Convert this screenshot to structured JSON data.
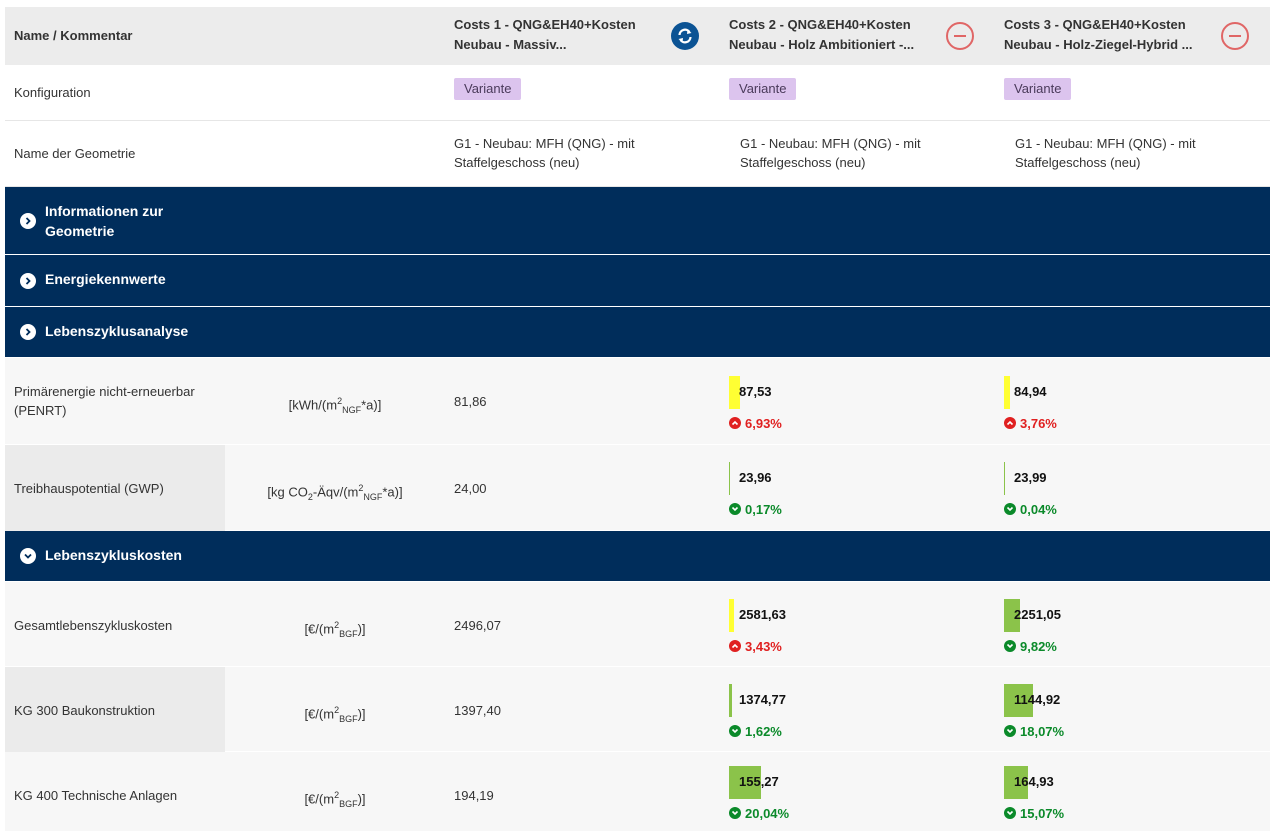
{
  "header": {
    "name_label": "Name / Kommentar",
    "variants": [
      {
        "line1": "Costs 1 - QNG&EH40+Kosten",
        "line2": "Neubau - Massiv..."
      },
      {
        "line1": "Costs 2 - QNG&EH40+Kosten",
        "line2": "Neubau - Holz Ambitioniert -..."
      },
      {
        "line1": "Costs 3 - QNG&EH40+Kosten",
        "line2": "Neubau - Holz-Ziegel-Hybrid ..."
      }
    ]
  },
  "konfiguration": {
    "label": "Konfiguration",
    "badge": "Variante"
  },
  "geometrie": {
    "label": "Name der Geometrie",
    "line1": "G1 - Neubau: MFH (QNG) - mit",
    "line2": "Staffelgeschoss (neu)"
  },
  "sections": {
    "info": {
      "line1": "Informationen zur",
      "line2": "Geometrie"
    },
    "energie": "Energiekennwerte",
    "lca": "Lebenszyklusanalyse",
    "lcc": "Lebenszykluskosten"
  },
  "rows": [
    {
      "label1": "Primärenergie nicht-erneuerbar",
      "label2": "(PENRT)",
      "unit_pre": "[kWh/(m",
      "unit_sup": "2",
      "unit_sub": "NGF",
      "unit_post": "*a)]",
      "base": "81,86",
      "v2": {
        "value": "87,53",
        "delta": "6,93%",
        "dir": "up",
        "bar_color": "#ffff33",
        "bar_fraction": 0.07
      },
      "v3": {
        "value": "84,94",
        "delta": "3,76%",
        "dir": "up",
        "bar_color": "#ffff33",
        "bar_fraction": 0.04
      }
    },
    {
      "label1": "Treibhauspotential (GWP)",
      "label2": "",
      "unit_pre": "[kg CO",
      "unit_sub0": "2",
      "unit_mid": "-Äqv/(m",
      "unit_sup": "2",
      "unit_sub": "NGF",
      "unit_post": "*a)]",
      "base": "24,00",
      "v2": {
        "value": "23,96",
        "delta": "0,17%",
        "dir": "down",
        "bar_color": "#8bc34a",
        "bar_fraction": 0.002
      },
      "v3": {
        "value": "23,99",
        "delta": "0,04%",
        "dir": "down",
        "bar_color": "#8bc34a",
        "bar_fraction": 0.0004
      }
    },
    {
      "label1": "Gesamtlebenszykluskosten",
      "label2": "",
      "unit_pre": "[€/(m",
      "unit_sup": "2",
      "unit_sub": "BGF",
      "unit_post": ")]",
      "base": "2496,07",
      "v2": {
        "value": "2581,63",
        "delta": "3,43%",
        "dir": "up",
        "bar_color": "#ffff33",
        "bar_fraction": 0.034
      },
      "v3": {
        "value": "2251,05",
        "delta": "9,82%",
        "dir": "down",
        "bar_color": "#8bc34a",
        "bar_fraction": 0.098
      }
    },
    {
      "label1": "KG 300 Baukonstruktion",
      "label2": "",
      "unit_pre": "[€/(m",
      "unit_sup": "2",
      "unit_sub": "BGF",
      "unit_post": ")]",
      "base": "1397,40",
      "v2": {
        "value": "1374,77",
        "delta": "1,62%",
        "dir": "down",
        "bar_color": "#8bc34a",
        "bar_fraction": 0.016
      },
      "v3": {
        "value": "1144,92",
        "delta": "18,07%",
        "dir": "down",
        "bar_color": "#8bc34a",
        "bar_fraction": 0.181
      }
    },
    {
      "label1": "KG 400 Technische Anlagen",
      "label2": "",
      "unit_pre": "[€/(m",
      "unit_sup": "2",
      "unit_sub": "BGF",
      "unit_post": ")]",
      "base": "194,19",
      "v2": {
        "value": "155,27",
        "delta": "20,04%",
        "dir": "down",
        "bar_color": "#8bc34a",
        "bar_fraction": 0.2
      },
      "v3": {
        "value": "164,93",
        "delta": "15,07%",
        "dir": "down",
        "bar_color": "#8bc34a",
        "bar_fraction": 0.151
      }
    }
  ]
}
